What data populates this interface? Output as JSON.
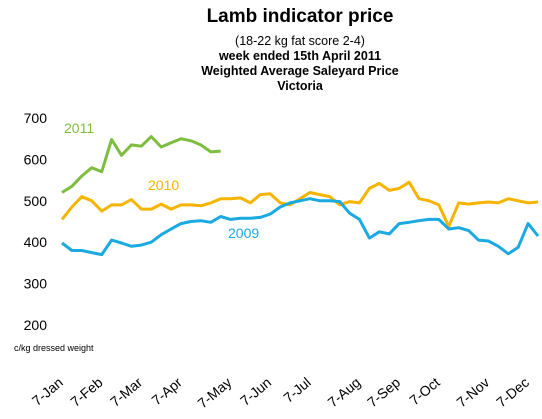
{
  "chart_data": {
    "type": "line",
    "title": "Lamb indicator price",
    "subtitle": [
      "(18-22 kg fat score 2-4)",
      "week ended 15th April 2011",
      "Weighted Average Saleyard Price",
      "Victoria"
    ],
    "y_label": "c/kg dressed weight",
    "categories": [
      "7-Jan",
      null,
      null,
      null,
      "7-Feb",
      null,
      null,
      null,
      "7-Mar",
      null,
      null,
      null,
      "7-Apr",
      null,
      null,
      null,
      null,
      "7-May",
      null,
      null,
      null,
      "7-Jun",
      null,
      null,
      null,
      "7-Jul",
      null,
      null,
      null,
      null,
      "7-Aug",
      null,
      null,
      null,
      "7-Sep",
      null,
      null,
      null,
      "7-Oct",
      null,
      null,
      null,
      null,
      "7-Nov",
      null,
      null,
      null,
      "7-Dec",
      null
    ],
    "ylim": [
      200,
      700
    ],
    "yticks": [
      200,
      300,
      400,
      500,
      600,
      700
    ],
    "grid": false,
    "series": [
      {
        "name": "2011",
        "color": "#7dbd3f",
        "values": [
          520,
          535,
          560,
          580,
          570,
          648,
          610,
          635,
          632,
          655,
          630,
          640,
          650,
          645,
          635,
          618,
          620,
          null,
          null,
          null,
          null,
          null,
          null,
          null,
          null,
          null,
          null,
          null,
          null,
          null,
          null,
          null,
          null,
          null,
          null,
          null,
          null,
          null,
          null,
          null,
          null,
          null,
          null,
          null,
          null,
          null,
          null,
          null,
          null
        ]
      },
      {
        "name": "2010",
        "color": "#f5b400",
        "values": [
          455,
          485,
          510,
          500,
          475,
          490,
          490,
          503,
          480,
          480,
          492,
          480,
          490,
          490,
          488,
          495,
          505,
          505,
          507,
          495,
          515,
          517,
          495,
          490,
          505,
          520,
          515,
          510,
          490,
          498,
          495,
          530,
          542,
          525,
          530,
          545,
          505,
          500,
          490,
          438,
          495,
          492,
          495,
          497,
          495,
          505,
          500,
          495,
          497
        ]
      },
      {
        "name": "2009",
        "color": "#1aa9e0",
        "values": [
          398,
          380,
          380,
          375,
          370,
          405,
          398,
          390,
          393,
          400,
          418,
          432,
          445,
          450,
          452,
          448,
          462,
          455,
          458,
          458,
          460,
          468,
          485,
          495,
          500,
          505,
          500,
          500,
          498,
          470,
          455,
          410,
          425,
          420,
          445,
          448,
          452,
          455,
          455,
          432,
          435,
          428,
          405,
          403,
          390,
          372,
          388,
          445,
          415
        ]
      }
    ]
  }
}
